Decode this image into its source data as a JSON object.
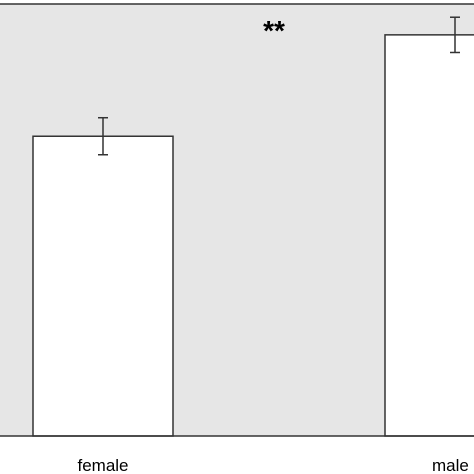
{
  "chart_data": {
    "type": "bar",
    "categories": [
      "female",
      "male"
    ],
    "values": [
      68,
      91
    ],
    "error": [
      4.2,
      4.0
    ],
    "ylim": [
      0,
      98
    ],
    "title": "",
    "xlabel": "",
    "ylabel": "",
    "annotations": [
      {
        "text": "**"
      }
    ],
    "grid": false,
    "colors": {
      "plot_background": "#e6e6e6",
      "bar_fill": "#ffffff",
      "bar_stroke": "#333333",
      "axis": "#333333",
      "text": "#000000"
    }
  }
}
